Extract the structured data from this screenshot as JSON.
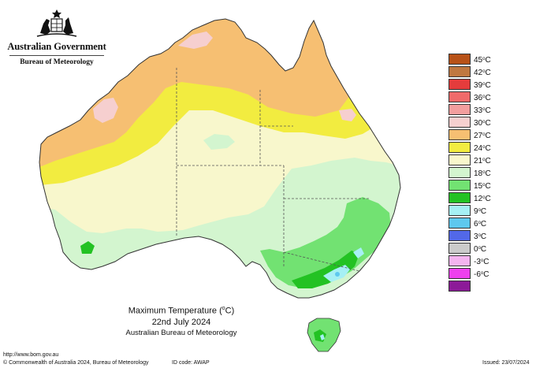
{
  "logo": {
    "government": "Australian Government",
    "bureau": "Bureau of Meteorology"
  },
  "legend": {
    "items": [
      {
        "label": "45",
        "color": "#b85218"
      },
      {
        "label": "42",
        "color": "#c07840"
      },
      {
        "label": "39",
        "color": "#e53c3c"
      },
      {
        "label": "36",
        "color": "#f06a6a"
      },
      {
        "label": "33",
        "color": "#f39e9e"
      },
      {
        "label": "30",
        "color": "#f6cfcf"
      },
      {
        "label": "27",
        "color": "#f6bf72"
      },
      {
        "label": "24",
        "color": "#f2ec40"
      },
      {
        "label": "21",
        "color": "#f8f7cc"
      },
      {
        "label": "18",
        "color": "#d3f5cf"
      },
      {
        "label": "15",
        "color": "#72e272"
      },
      {
        "label": "12",
        "color": "#23c223"
      },
      {
        "label": "9",
        "color": "#a6f0f4"
      },
      {
        "label": "6",
        "color": "#5ec8ee"
      },
      {
        "label": "3",
        "color": "#5268e8"
      },
      {
        "label": "0",
        "color": "#cbcbcb"
      },
      {
        "label": "-3",
        "color": "#f4b4f0"
      },
      {
        "label": "-6",
        "color": "#ee40ee"
      },
      {
        "label": "",
        "color": "#8c1a98"
      }
    ],
    "unit": "C"
  },
  "title": {
    "line1": "Maximum Temperature (",
    "unit": "C)",
    "line2": "22nd July 2024",
    "line3": "Australian Bureau of Meteorology"
  },
  "footer": {
    "url": "http://www.bom.gov.au",
    "copyright": "© Commonwealth of Australia 2024, Bureau of Meteorology",
    "id_code": "ID code: AWAP",
    "issued": "Issued: 23/07/2024"
  }
}
